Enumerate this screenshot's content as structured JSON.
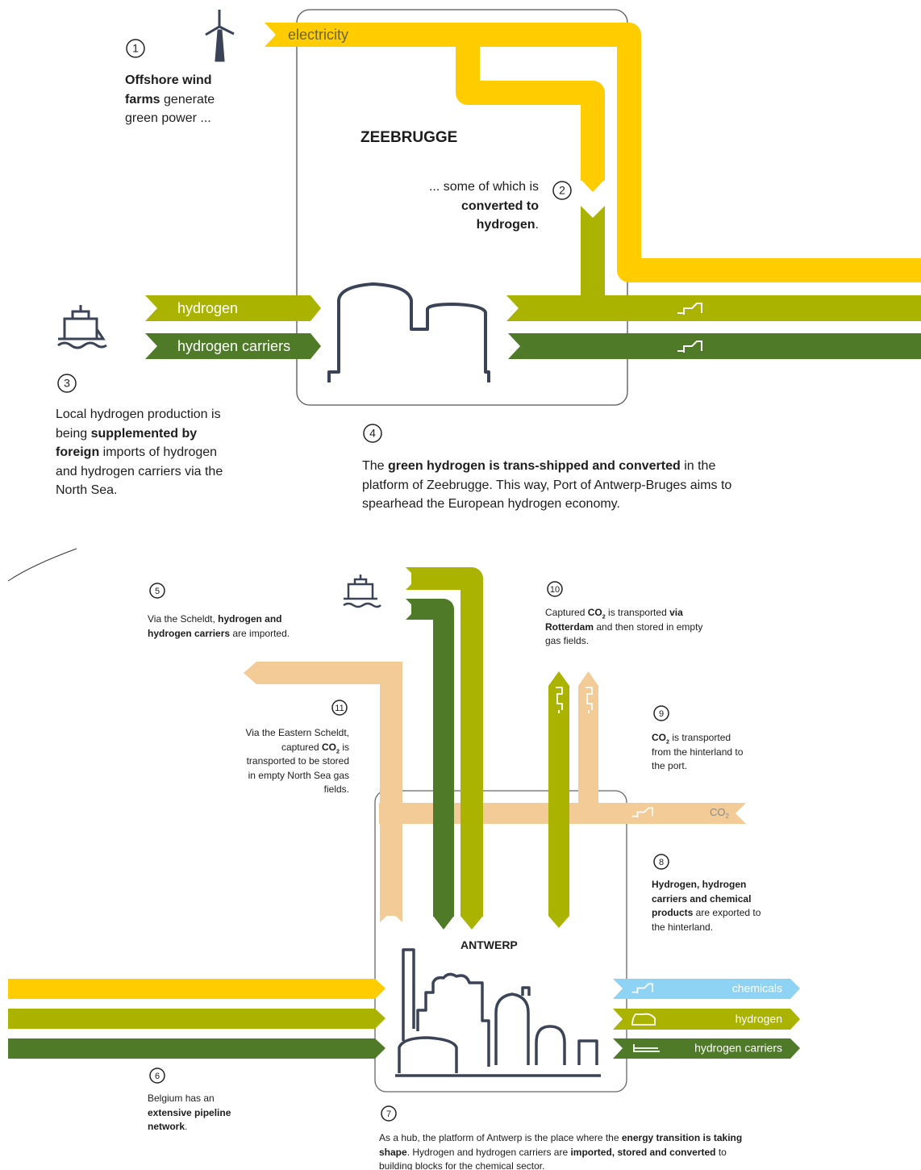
{
  "zeebrugge": {
    "title": "ZEEBRUGGE",
    "flow_labels": [
      "electricity",
      "hydrogen",
      "hydrogen carriers"
    ]
  },
  "antwerp": {
    "title": "ANTWERP",
    "co2_label": [
      {
        "text": "CO"
      },
      {
        "text": "2",
        "sub": true
      }
    ],
    "export_labels": [
      "chemicals",
      "hydrogen",
      "hydrogen carriers"
    ]
  },
  "steps": [
    {
      "number": "1",
      "parts": [
        {
          "text": "Offshore wind farms",
          "bold": true
        },
        {
          "text": " generate green power ..."
        }
      ]
    },
    {
      "number": "2",
      "parts": [
        {
          "text": "... some of which is "
        },
        {
          "text": "converted to hydrogen",
          "bold": true
        },
        {
          "text": "."
        }
      ]
    },
    {
      "number": "3",
      "parts": [
        {
          "text": "Local hydrogen production is being "
        },
        {
          "text": "supplemented by foreign",
          "bold": true
        },
        {
          "text": " imports of hydrogen and hydrogen carriers via the North Sea."
        }
      ]
    },
    {
      "number": "4",
      "parts": [
        {
          "text": "The "
        },
        {
          "text": "green hydrogen is trans-shipped and converted",
          "bold": true
        },
        {
          "text": " in the platform of Zeebrugge. This way, Port of Antwerp-Bruges aims to spearhead the European hydrogen economy."
        }
      ]
    },
    {
      "number": "5",
      "parts": [
        {
          "text": "Via the Scheldt, "
        },
        {
          "text": "hydrogen and hydrogen carriers",
          "bold": true
        },
        {
          "text": " are imported."
        }
      ]
    },
    {
      "number": "6",
      "parts": [
        {
          "text": "Belgium has an "
        },
        {
          "text": "extensive pipeline network",
          "bold": true
        },
        {
          "text": "."
        }
      ]
    },
    {
      "number": "7",
      "parts": [
        {
          "text": "As a hub, the platform of Antwerp is the place where the "
        },
        {
          "text": "energy transition is taking shape",
          "bold": true
        },
        {
          "text": ". Hydrogen and hydrogen carriers are "
        },
        {
          "text": "imported, stored and converted",
          "bold": true
        },
        {
          "text": " to building blocks for the chemical sector."
        }
      ]
    },
    {
      "number": "8",
      "parts": [
        {
          "text": "Hydrogen, hydrogen carriers and chemical products",
          "bold": true
        },
        {
          "text": " are exported to the hinterland."
        }
      ]
    },
    {
      "number": "9",
      "parts": [
        {
          "text": "CO",
          "bold": true
        },
        {
          "text": "2",
          "bold": true,
          "sub": true
        },
        {
          "text": " is transported from the hinterland to the port."
        }
      ]
    },
    {
      "number": "10",
      "parts": [
        {
          "text": "Captured "
        },
        {
          "text": "CO",
          "bold": true
        },
        {
          "text": "2",
          "bold": true,
          "sub": true
        },
        {
          "text": " is transported "
        },
        {
          "text": "via Rotterdam",
          "bold": true
        },
        {
          "text": " and then stored in empty gas fields."
        }
      ]
    },
    {
      "number": "11",
      "parts": [
        {
          "text": "Via the Eastern Scheldt, captured "
        },
        {
          "text": "CO",
          "bold": true
        },
        {
          "text": "2",
          "bold": true,
          "sub": true
        },
        {
          "text": " is transported to be stored in empty North Sea gas fields."
        }
      ]
    }
  ]
}
